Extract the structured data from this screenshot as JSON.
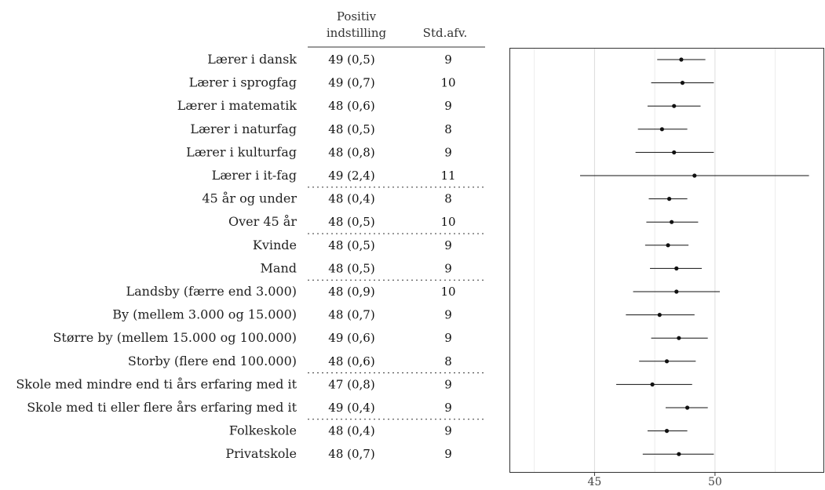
{
  "chart_data": {
    "type": "forest",
    "columns": {
      "estimate_line1": "Positiv",
      "estimate_line2": "indstilling",
      "sd": "Std.afv."
    },
    "rows": [
      {
        "label": "Lærer i dansk",
        "estimate": "49 (0,5)",
        "sd": "9",
        "mean": 48.6,
        "lo": 47.6,
        "hi": 49.6
      },
      {
        "label": "Lærer i sprogfag",
        "estimate": "49 (0,7)",
        "sd": "10",
        "mean": 48.65,
        "lo": 47.35,
        "hi": 49.95
      },
      {
        "label": "Lærer i matematik",
        "estimate": "48 (0,6)",
        "sd": "9",
        "mean": 48.3,
        "lo": 47.2,
        "hi": 49.4
      },
      {
        "label": "Lærer i naturfag",
        "estimate": "48 (0,5)",
        "sd": "8",
        "mean": 47.8,
        "lo": 46.8,
        "hi": 48.85
      },
      {
        "label": "Lærer i kulturfag",
        "estimate": "48 (0,8)",
        "sd": "9",
        "mean": 48.3,
        "lo": 46.7,
        "hi": 49.95
      },
      {
        "label": "Lærer i it-fag",
        "estimate": "49 (2,4)",
        "sd": "11",
        "mean": 49.15,
        "lo": 44.4,
        "hi": 53.9
      },
      {
        "label": "45 år og under",
        "estimate": "48 (0,4)",
        "sd": "8",
        "mean": 48.1,
        "lo": 47.25,
        "hi": 48.85
      },
      {
        "label": "Over 45 år",
        "estimate": "48 (0,5)",
        "sd": "10",
        "mean": 48.2,
        "lo": 47.15,
        "hi": 49.3
      },
      {
        "label": "Kvinde",
        "estimate": "48 (0,5)",
        "sd": "9",
        "mean": 48.05,
        "lo": 47.1,
        "hi": 48.9
      },
      {
        "label": "Mand",
        "estimate": "48 (0,5)",
        "sd": "9",
        "mean": 48.4,
        "lo": 47.3,
        "hi": 49.45
      },
      {
        "label": "Landsby (færre end 3.000)",
        "estimate": "48 (0,9)",
        "sd": "10",
        "mean": 48.4,
        "lo": 46.6,
        "hi": 50.2
      },
      {
        "label": "By (mellem 3.000 og 15.000)",
        "estimate": "48 (0,7)",
        "sd": "9",
        "mean": 47.7,
        "lo": 46.3,
        "hi": 49.15
      },
      {
        "label": "Større by (mellem 15.000 og 100.000)",
        "estimate": "49 (0,6)",
        "sd": "9",
        "mean": 48.5,
        "lo": 47.35,
        "hi": 49.7
      },
      {
        "label": "Storby (flere end 100.000)",
        "estimate": "48 (0,6)",
        "sd": "8",
        "mean": 48.0,
        "lo": 46.85,
        "hi": 49.2
      },
      {
        "label": "Skole med mindre end ti års erfaring med it",
        "estimate": "47 (0,8)",
        "sd": "9",
        "mean": 47.4,
        "lo": 45.9,
        "hi": 49.05
      },
      {
        "label": "Skole med ti eller flere års erfaring med it",
        "estimate": "49 (0,4)",
        "sd": "9",
        "mean": 48.85,
        "lo": 47.95,
        "hi": 49.7
      },
      {
        "label": "Folkeskole",
        "estimate": "48 (0,4)",
        "sd": "9",
        "mean": 48.0,
        "lo": 47.2,
        "hi": 48.85
      },
      {
        "label": "Privatskole",
        "estimate": "48 (0,7)",
        "sd": "9",
        "mean": 48.5,
        "lo": 47.0,
        "hi": 49.95
      }
    ],
    "group_breaks_after": [
      5,
      7,
      9,
      13,
      15
    ],
    "xlim": [
      41.5,
      54.5
    ],
    "x_ticks": [
      45,
      50
    ],
    "x_tick_labels": [
      "45",
      "50"
    ],
    "minor_gridlines": [
      42.5,
      47.5,
      52.5
    ],
    "grid": true,
    "xlabel": "",
    "ylabel": ""
  }
}
